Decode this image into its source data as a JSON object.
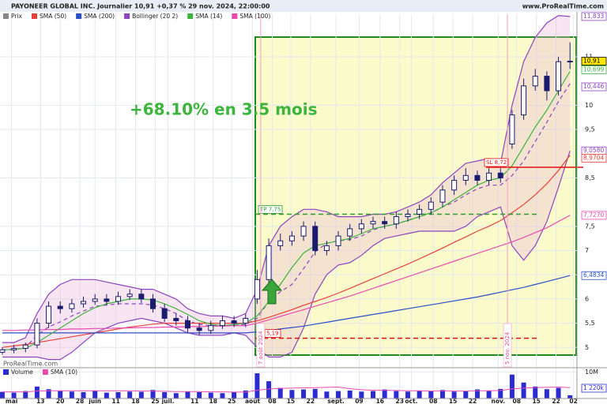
{
  "chart_data": {
    "type": "candlestick",
    "title": "PAYONEER GLOBAL INC. Journalier 10,91 +0,37 % 29 nov. 2024, 22:00:00",
    "source": "www.ProRealTime.com",
    "watermark": "ProRealTime.com",
    "headline": "+68.10% en 3.5 mois",
    "ylim": [
      4.76,
      11.88
    ],
    "yticks": [
      5,
      {
        "value": 5.5,
        "label": "5,5"
      },
      6,
      {
        "value": 6.5,
        "label": "6,5"
      },
      7,
      {
        "value": 7.5,
        "label": "7,5"
      },
      {
        "value": 8.5,
        "label": "8,5"
      },
      {
        "value": 9.5,
        "label": "9,5"
      },
      10,
      11
    ],
    "xlim": [
      -0.2,
      49.6
    ],
    "xticks": [
      {
        "value": 0.8,
        "label": "mai"
      },
      {
        "value": 3.3,
        "label": "13"
      },
      {
        "value": 5,
        "label": "20"
      },
      {
        "value": 6.7,
        "label": "28"
      },
      {
        "value": 8,
        "label": "juin"
      },
      {
        "value": 9.8,
        "label": "11"
      },
      {
        "value": 11.5,
        "label": "18"
      },
      {
        "value": 13.2,
        "label": "25"
      },
      {
        "value": 14.3,
        "label": "juil."
      },
      {
        "value": 16.6,
        "label": "11"
      },
      {
        "value": 18.2,
        "label": "18"
      },
      {
        "value": 19.8,
        "label": "25"
      },
      {
        "value": 21.6,
        "label": "août"
      },
      {
        "value": 23.3,
        "label": "08"
      },
      {
        "value": 24.9,
        "label": "15"
      },
      {
        "value": 26.6,
        "label": "22"
      },
      {
        "value": 28.8,
        "label": "sept."
      },
      {
        "value": 30.8,
        "label": "09"
      },
      {
        "value": 32.6,
        "label": "16"
      },
      {
        "value": 34.3,
        "label": "23"
      },
      {
        "value": 35.3,
        "label": "oct."
      },
      {
        "value": 37.2,
        "label": "08"
      },
      {
        "value": 38.9,
        "label": "15"
      },
      {
        "value": 40.6,
        "label": "22"
      },
      {
        "value": 42.8,
        "label": "nov."
      },
      {
        "value": 44.4,
        "label": "08"
      },
      {
        "value": 46.1,
        "label": "15"
      },
      {
        "value": 47.8,
        "label": "22"
      },
      {
        "value": 49.3,
        "label": "02"
      }
    ],
    "grid": true,
    "candles": {
      "name": "Prix",
      "color": "#1c1c6e",
      "last_label": "10,91",
      "open": [
        4.9,
        4.95,
        4.98,
        5.05,
        5.5,
        5.85,
        5.8,
        5.9,
        5.95,
        6.0,
        5.95,
        6.05,
        6.1,
        6.0,
        5.8,
        5.6,
        5.55,
        5.4,
        5.35,
        5.45,
        5.55,
        5.5,
        6.0,
        6.4,
        7.1,
        7.2,
        7.3,
        7.5,
        7.0,
        7.1,
        7.3,
        7.45,
        7.55,
        7.6,
        7.55,
        7.7,
        7.75,
        7.85,
        8.0,
        8.25,
        8.45,
        8.55,
        8.45,
        8.6,
        9.2,
        9.8,
        10.4,
        10.6,
        10.3,
        10.9
      ],
      "high": [
        5.0,
        5.05,
        5.1,
        5.6,
        5.95,
        5.95,
        6.0,
        6.05,
        6.1,
        6.1,
        6.15,
        6.2,
        6.2,
        6.1,
        5.9,
        5.7,
        5.65,
        5.5,
        5.55,
        5.65,
        5.65,
        5.7,
        6.6,
        7.25,
        7.35,
        7.4,
        7.6,
        7.6,
        7.2,
        7.4,
        7.55,
        7.65,
        7.7,
        7.7,
        7.8,
        7.85,
        7.95,
        8.1,
        8.35,
        8.55,
        8.7,
        8.65,
        8.7,
        8.7,
        9.9,
        10.55,
        10.75,
        10.7,
        11.0,
        11.3
      ],
      "low": [
        4.85,
        4.88,
        4.9,
        4.98,
        5.4,
        5.7,
        5.72,
        5.82,
        5.88,
        5.88,
        5.88,
        5.98,
        5.92,
        5.72,
        5.52,
        5.45,
        5.3,
        5.25,
        5.28,
        5.38,
        5.42,
        5.42,
        5.9,
        6.3,
        7.0,
        7.1,
        7.2,
        6.9,
        6.9,
        7.0,
        7.2,
        7.35,
        7.45,
        7.45,
        7.45,
        7.6,
        7.65,
        7.75,
        7.9,
        8.15,
        8.35,
        8.35,
        8.35,
        8.4,
        9.1,
        9.7,
        10.3,
        10.1,
        10.2,
        10.75
      ],
      "close": [
        4.95,
        4.98,
        5.05,
        5.5,
        5.85,
        5.8,
        5.9,
        5.95,
        6.0,
        5.95,
        6.05,
        6.1,
        6.0,
        5.8,
        5.6,
        5.55,
        5.4,
        5.35,
        5.45,
        5.55,
        5.5,
        5.6,
        6.4,
        7.1,
        7.2,
        7.3,
        7.5,
        7.0,
        7.1,
        7.3,
        7.45,
        7.55,
        7.6,
        7.55,
        7.7,
        7.75,
        7.85,
        8.0,
        8.25,
        8.45,
        8.55,
        8.45,
        8.6,
        8.5,
        9.8,
        10.4,
        10.6,
        10.3,
        10.9,
        10.91
      ]
    },
    "bollinger": {
      "name": "Bollinger (20 2)",
      "color": "#8e44c0",
      "upper_label": "11,833",
      "middle_label": "10,446",
      "lower_label": "9,0580",
      "upper": [
        5.1,
        5.1,
        5.2,
        5.7,
        6.1,
        6.3,
        6.4,
        6.4,
        6.4,
        6.35,
        6.3,
        6.25,
        6.2,
        6.2,
        6.1,
        6.0,
        5.8,
        5.7,
        5.65,
        5.65,
        5.6,
        5.7,
        6.2,
        7.1,
        7.5,
        7.7,
        7.85,
        7.85,
        7.8,
        7.7,
        7.7,
        7.7,
        7.75,
        7.75,
        7.8,
        7.9,
        8.0,
        8.15,
        8.4,
        8.6,
        8.8,
        8.85,
        8.9,
        8.8,
        10.0,
        10.9,
        11.4,
        11.7,
        11.85,
        11.833
      ],
      "middle": [
        4.95,
        4.95,
        5.0,
        5.25,
        5.425,
        5.525,
        5.65,
        5.75,
        5.85,
        5.875,
        5.9,
        5.9,
        5.9,
        5.875,
        5.8,
        5.7,
        5.55,
        5.475,
        5.45,
        5.45,
        5.45,
        5.475,
        5.6,
        5.95,
        6.15,
        6.3,
        6.625,
        6.975,
        7.15,
        7.2,
        7.225,
        7.3,
        7.425,
        7.5,
        7.55,
        7.625,
        7.7,
        7.775,
        7.9,
        8.0,
        8.15,
        8.275,
        8.35,
        8.35,
        8.55,
        8.85,
        9.25,
        9.65,
        10.075,
        10.446
      ],
      "lower": [
        4.8,
        4.8,
        4.8,
        4.8,
        4.75,
        4.75,
        4.9,
        5.1,
        5.3,
        5.4,
        5.5,
        5.55,
        5.6,
        5.55,
        5.5,
        5.4,
        5.3,
        5.25,
        5.25,
        5.25,
        5.3,
        5.25,
        5.0,
        4.8,
        4.8,
        4.9,
        5.4,
        6.1,
        6.5,
        6.7,
        6.75,
        6.9,
        7.1,
        7.25,
        7.3,
        7.35,
        7.4,
        7.4,
        7.4,
        7.4,
        7.5,
        7.7,
        7.8,
        7.9,
        7.1,
        6.8,
        7.1,
        7.6,
        8.3,
        9.058
      ]
    },
    "series": [
      {
        "name": "SMA (50)",
        "color": "#e8413a",
        "last_label": "8,9704",
        "values": [
          5.0,
          5.03,
          5.06,
          5.1,
          5.14,
          5.18,
          5.22,
          5.26,
          5.3,
          5.34,
          5.38,
          5.42,
          5.45,
          5.48,
          5.5,
          5.5,
          5.5,
          5.5,
          5.5,
          5.5,
          5.5,
          5.5,
          5.55,
          5.62,
          5.7,
          5.78,
          5.87,
          5.95,
          6.03,
          6.12,
          6.22,
          6.32,
          6.42,
          6.52,
          6.62,
          6.72,
          6.83,
          6.94,
          7.05,
          7.17,
          7.28,
          7.4,
          7.5,
          7.62,
          7.78,
          7.95,
          8.15,
          8.38,
          8.65,
          8.9704
        ]
      },
      {
        "name": "SMA (200)",
        "color": "#2b4fc9",
        "last_label": "6,4834",
        "values": [
          5.3,
          5.3,
          5.3,
          5.3,
          5.3,
          5.3,
          5.3,
          5.3,
          5.3,
          5.3,
          5.3,
          5.3,
          5.3,
          5.3,
          5.3,
          5.3,
          5.3,
          5.3,
          5.3,
          5.3,
          5.3,
          5.3,
          5.32,
          5.35,
          5.38,
          5.41,
          5.44,
          5.48,
          5.52,
          5.56,
          5.6,
          5.64,
          5.68,
          5.72,
          5.76,
          5.8,
          5.84,
          5.88,
          5.92,
          5.96,
          6.0,
          6.04,
          6.09,
          6.14,
          6.19,
          6.24,
          6.3,
          6.36,
          6.42,
          6.4834
        ]
      },
      {
        "name": "SMA (14)",
        "color": "#3db43d",
        "last_label": "10,699",
        "values": [
          4.95,
          4.96,
          4.98,
          5.1,
          5.25,
          5.4,
          5.55,
          5.7,
          5.82,
          5.9,
          5.95,
          6.0,
          6.0,
          5.98,
          5.9,
          5.8,
          5.68,
          5.55,
          5.48,
          5.45,
          5.47,
          5.5,
          5.65,
          5.95,
          6.3,
          6.65,
          6.95,
          7.1,
          7.15,
          7.2,
          7.25,
          7.35,
          7.45,
          7.5,
          7.55,
          7.62,
          7.7,
          7.78,
          7.9,
          8.05,
          8.2,
          8.35,
          8.45,
          8.5,
          8.75,
          9.15,
          9.55,
          9.9,
          10.3,
          10.699
        ]
      },
      {
        "name": "SMA (100)",
        "color": "#e84bb0",
        "last_label": "7,7270",
        "values": [
          5.35,
          5.35,
          5.36,
          5.36,
          5.37,
          5.37,
          5.38,
          5.38,
          5.39,
          5.39,
          5.4,
          5.4,
          5.41,
          5.41,
          5.42,
          5.42,
          5.43,
          5.43,
          5.44,
          5.44,
          5.45,
          5.45,
          5.5,
          5.57,
          5.64,
          5.71,
          5.78,
          5.85,
          5.92,
          5.99,
          6.06,
          6.14,
          6.22,
          6.3,
          6.38,
          6.46,
          6.54,
          6.62,
          6.7,
          6.78,
          6.86,
          6.94,
          7.02,
          7.1,
          7.18,
          7.27,
          7.37,
          7.47,
          7.6,
          7.727
        ]
      }
    ],
    "levels": [
      {
        "label": "TP 7,75",
        "value": 7.75,
        "color": "#2a9d2a"
      },
      {
        "label": "SL 8,72",
        "value": 8.72,
        "color": "#e01010"
      },
      {
        "label": "5,19",
        "value": 5.19,
        "color": "#e01010"
      }
    ],
    "events": [
      {
        "label": "7 août 2024",
        "x": 22.3
      },
      {
        "label": "5 nov. 2024",
        "x": 43.6
      }
    ],
    "volume": {
      "name": "Volume",
      "color": "#2b2bd0",
      "last_label": "1 220k",
      "ylim": [
        0,
        11
      ],
      "yticks": [
        {
          "value": 10,
          "label": "10M"
        }
      ],
      "values": [
        2.5,
        2.2,
        2.8,
        4.5,
        3.5,
        2.8,
        2.6,
        2.4,
        2.9,
        2.2,
        2.4,
        2.6,
        2.5,
        3.2,
        2.4,
        2.0,
        2.6,
        2.4,
        2.2,
        2.0,
        2.5,
        3.0,
        9.5,
        6.5,
        4.0,
        3.2,
        3.4,
        3.6,
        2.6,
        2.8,
        3.0,
        2.6,
        2.8,
        3.4,
        2.8,
        2.6,
        3.0,
        2.8,
        3.2,
        2.6,
        2.8,
        3.4,
        3.0,
        3.6,
        9.0,
        6.0,
        4.5,
        3.5,
        4.0,
        1.22
      ],
      "sma": {
        "name": "SMA (10)",
        "color": "#e84bb0",
        "values": [
          2.5,
          2.5,
          2.5,
          2.8,
          2.9,
          2.9,
          2.9,
          2.9,
          2.9,
          2.9,
          2.9,
          2.9,
          2.8,
          2.8,
          2.7,
          2.6,
          2.6,
          2.6,
          2.5,
          2.5,
          2.4,
          2.4,
          3.1,
          3.6,
          3.8,
          3.9,
          4.0,
          4.1,
          4.2,
          4.3,
          3.7,
          3.3,
          3.1,
          3.1,
          3.0,
          2.9,
          2.9,
          2.8,
          2.9,
          2.8,
          2.8,
          2.9,
          2.9,
          3.0,
          3.6,
          3.9,
          4.1,
          4.2,
          4.3,
          4.1
        ]
      }
    }
  }
}
